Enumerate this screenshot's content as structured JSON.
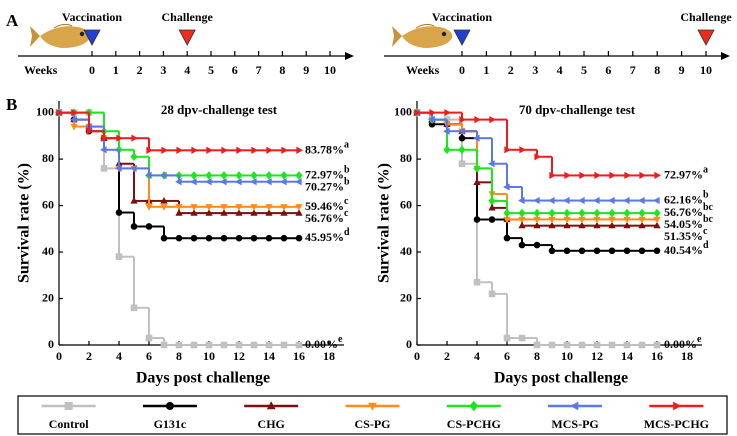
{
  "panel_a": {
    "label": "A",
    "timelines": [
      {
        "axis_label": "Weeks",
        "ticks": [
          0,
          1,
          2,
          3,
          4,
          5,
          6,
          7,
          8,
          9,
          10
        ],
        "vaccination": {
          "text": "Vaccination",
          "week": 0
        },
        "challenge": {
          "text": "Challenge",
          "week": 4
        }
      },
      {
        "axis_label": "Weeks",
        "ticks": [
          0,
          1,
          2,
          3,
          4,
          5,
          6,
          7,
          8,
          9,
          10
        ],
        "vaccination": {
          "text": "Vaccination",
          "week": 0
        },
        "challenge": {
          "text": "Challenge",
          "week": 10
        }
      }
    ]
  },
  "panel_b": {
    "label": "B"
  },
  "chart_data": [
    {
      "type": "line",
      "step": true,
      "title": "28 dpv-challenge test",
      "xlabel": "Days post challenge",
      "ylabel": "Survival rate (%)",
      "x": [
        0,
        1,
        2,
        3,
        4,
        5,
        6,
        7,
        8,
        9,
        10,
        11,
        12,
        13,
        14,
        15,
        16
      ],
      "xlim": [
        0,
        19
      ],
      "xticks": [
        0,
        2,
        4,
        6,
        8,
        10,
        12,
        14,
        16,
        18
      ],
      "ylim": [
        0,
        105
      ],
      "yticks": [
        0,
        20,
        40,
        60,
        80,
        100
      ],
      "series": [
        {
          "name": "Control",
          "color": "#c0c0c0",
          "marker": "square",
          "values": [
            100,
            100,
            100,
            76,
            38,
            16,
            3,
            0,
            0,
            0,
            0,
            0,
            0,
            0,
            0,
            0,
            0
          ],
          "end_label": "0.00%",
          "letter": "e"
        },
        {
          "name": "G131c",
          "color": "#000000",
          "marker": "circle",
          "values": [
            100,
            97,
            92,
            89,
            57,
            51,
            51,
            45.95,
            45.95,
            45.95,
            45.95,
            45.95,
            45.95,
            45.95,
            45.95,
            45.95,
            45.95
          ],
          "end_label": "45.95%",
          "letter": "d"
        },
        {
          "name": "CHG",
          "color": "#7b1010",
          "marker": "triangle-up",
          "values": [
            100,
            97,
            94,
            89,
            78,
            62,
            62,
            62,
            56.76,
            56.76,
            56.76,
            56.76,
            56.76,
            56.76,
            56.76,
            56.76,
            56.76
          ],
          "end_label": "56.76%",
          "letter": "c"
        },
        {
          "name": "CS-PG",
          "color": "#ff8c1a",
          "marker": "triangle-down",
          "values": [
            100,
            94,
            94,
            89,
            76,
            76,
            59.46,
            59.46,
            59.46,
            59.46,
            59.46,
            59.46,
            59.46,
            59.46,
            59.46,
            59.46,
            59.46
          ],
          "end_label": "59.46%",
          "letter": "c"
        },
        {
          "name": "CS-PCHG",
          "color": "#1ee61e",
          "marker": "diamond",
          "values": [
            100,
            100,
            100,
            92,
            84,
            81,
            72.97,
            72.97,
            72.97,
            72.97,
            72.97,
            72.97,
            72.97,
            72.97,
            72.97,
            72.97,
            72.97
          ],
          "end_label": "72.97%",
          "letter": "b"
        },
        {
          "name": "MCS-PG",
          "color": "#5a78e6",
          "marker": "triangle-left",
          "values": [
            100,
            97,
            94,
            84,
            76,
            76,
            73,
            73,
            70.27,
            70.27,
            70.27,
            70.27,
            70.27,
            70.27,
            70.27,
            70.27,
            70.27
          ],
          "end_label": "70.27%",
          "letter": "b"
        },
        {
          "name": "MCS-PCHG",
          "color": "#ee1c1c",
          "marker": "triangle-right",
          "values": [
            100,
            100,
            92,
            89,
            89,
            89,
            83.78,
            83.78,
            83.78,
            83.78,
            83.78,
            83.78,
            83.78,
            83.78,
            83.78,
            83.78,
            83.78
          ],
          "end_label": "83.78%",
          "letter": "a"
        }
      ]
    },
    {
      "type": "line",
      "step": true,
      "title": "70 dpv-challenge test",
      "xlabel": "Days post challenge",
      "ylabel": "Survival rate (%)",
      "x": [
        0,
        1,
        2,
        3,
        4,
        5,
        6,
        7,
        8,
        9,
        10,
        11,
        12,
        13,
        14,
        15,
        16
      ],
      "xlim": [
        0,
        19
      ],
      "xticks": [
        0,
        2,
        4,
        6,
        8,
        10,
        12,
        14,
        16,
        18
      ],
      "ylim": [
        0,
        105
      ],
      "yticks": [
        0,
        20,
        40,
        60,
        80,
        100
      ],
      "series": [
        {
          "color": "#c0c0c0",
          "marker": "square",
          "values": [
            100,
            97,
            97,
            78,
            27,
            22,
            3,
            3,
            0,
            0,
            0,
            0,
            0,
            0,
            0,
            0,
            0
          ],
          "end_label": "0.00%",
          "letter": "e"
        },
        {
          "color": "#000000",
          "marker": "circle",
          "values": [
            100,
            95,
            95,
            89,
            54,
            54,
            46,
            43,
            43,
            40.54,
            40.54,
            40.54,
            40.54,
            40.54,
            40.54,
            40.54,
            40.54
          ],
          "end_label": "40.54%",
          "letter": "d"
        },
        {
          "color": "#7b1010",
          "marker": "triangle-up",
          "values": [
            100,
            97,
            95,
            92,
            70,
            59,
            54,
            51.35,
            51.35,
            51.35,
            51.35,
            51.35,
            51.35,
            51.35,
            51.35,
            51.35,
            51.35
          ],
          "end_label": "51.35%",
          "letter": "c"
        },
        {
          "color": "#ff8c1a",
          "marker": "triangle-down",
          "values": [
            100,
            97,
            95,
            92,
            76,
            65,
            54.05,
            54.05,
            54.05,
            54.05,
            54.05,
            54.05,
            54.05,
            54.05,
            54.05,
            54.05,
            54.05
          ],
          "end_label": "54.05%",
          "letter": "bc"
        },
        {
          "color": "#1ee61e",
          "marker": "diamond",
          "values": [
            100,
            97,
            84,
            84,
            76,
            62,
            56.76,
            56.76,
            56.76,
            56.76,
            56.76,
            56.76,
            56.76,
            56.76,
            56.76,
            56.76,
            56.76
          ],
          "end_label": "56.76%",
          "letter": "bc"
        },
        {
          "color": "#5a78e6",
          "marker": "triangle-left",
          "values": [
            100,
            97,
            92,
            92,
            89,
            78,
            68,
            62.16,
            62.16,
            62.16,
            62.16,
            62.16,
            62.16,
            62.16,
            62.16,
            62.16,
            62.16
          ],
          "end_label": "62.16%",
          "letter": "b"
        },
        {
          "color": "#ee1c1c",
          "marker": "triangle-right",
          "values": [
            100,
            100,
            100,
            97,
            97,
            97,
            84,
            84,
            81,
            72.97,
            72.97,
            72.97,
            72.97,
            72.97,
            72.97,
            72.97,
            72.97
          ],
          "end_label": "72.97%",
          "letter": "a"
        }
      ]
    }
  ]
}
